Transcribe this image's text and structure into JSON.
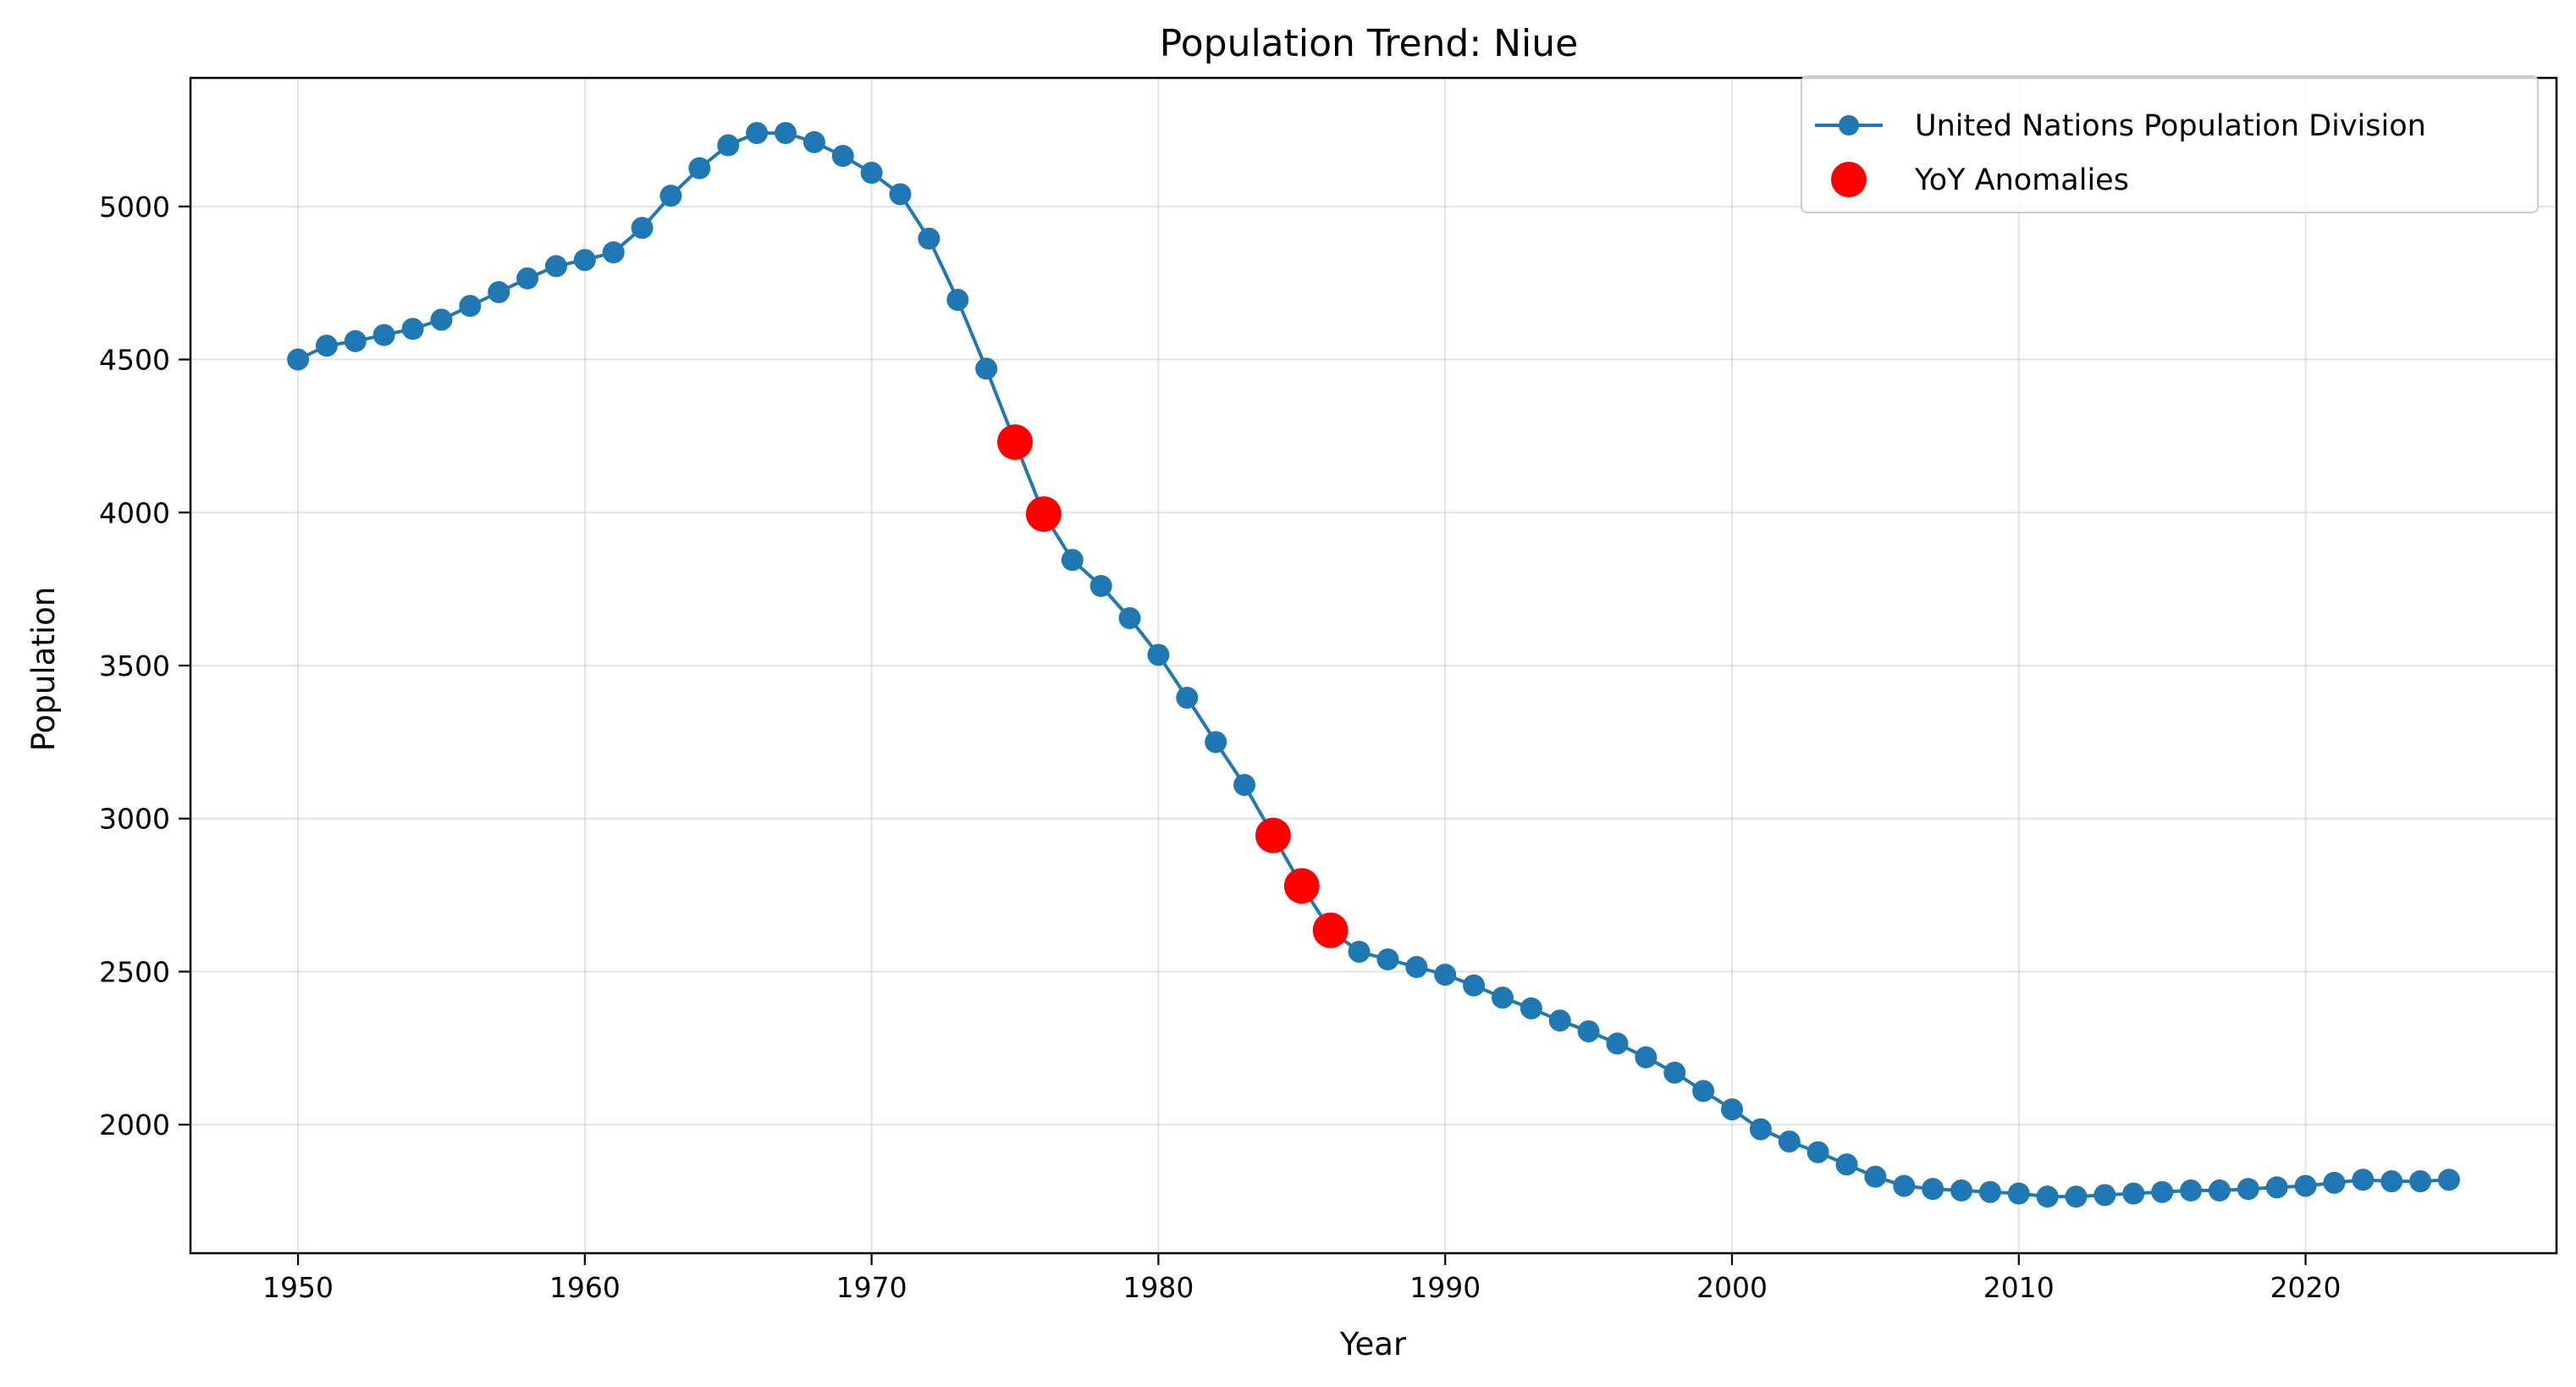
{
  "chart_data": {
    "type": "line",
    "title": "Population Trend: Niue",
    "xlabel": "Year",
    "ylabel": "Population",
    "xlim": [
      1946.25,
      2028.75
    ],
    "ylim": [
      1580,
      5420
    ],
    "x_ticks": [
      1950,
      1960,
      1970,
      1980,
      1990,
      2000,
      2010,
      2020
    ],
    "y_ticks": [
      2000,
      2500,
      3000,
      3500,
      4000,
      4500,
      5000
    ],
    "grid": true,
    "legend_position": "top-right",
    "colors": {
      "line": "#1f77b4",
      "anomaly": "#ff0000"
    },
    "series": [
      {
        "name": "United Nations Population Division",
        "style": "line-with-markers",
        "x": [
          1950,
          1951,
          1952,
          1953,
          1954,
          1955,
          1956,
          1957,
          1958,
          1959,
          1960,
          1961,
          1962,
          1963,
          1964,
          1965,
          1966,
          1967,
          1968,
          1969,
          1970,
          1971,
          1972,
          1973,
          1974,
          1975,
          1976,
          1977,
          1978,
          1979,
          1980,
          1981,
          1982,
          1983,
          1984,
          1985,
          1986,
          1987,
          1988,
          1989,
          1990,
          1991,
          1992,
          1993,
          1994,
          1995,
          1996,
          1997,
          1998,
          1999,
          2000,
          2001,
          2002,
          2003,
          2004,
          2005,
          2006,
          2007,
          2008,
          2009,
          2010,
          2011,
          2012,
          2013,
          2014,
          2015,
          2016,
          2017,
          2018,
          2019,
          2020,
          2021,
          2022,
          2023,
          2024,
          2025
        ],
        "y": [
          4500,
          4545,
          4560,
          4580,
          4600,
          4630,
          4675,
          4720,
          4765,
          4805,
          4825,
          4850,
          4930,
          5035,
          5125,
          5200,
          5240,
          5240,
          5210,
          5165,
          5110,
          5040,
          4895,
          4695,
          4470,
          4230,
          3995,
          3845,
          3760,
          3655,
          3535,
          3395,
          3250,
          3110,
          2945,
          2780,
          2635,
          2565,
          2540,
          2515,
          2490,
          2455,
          2415,
          2380,
          2340,
          2305,
          2265,
          2220,
          2170,
          2110,
          2050,
          1985,
          1945,
          1910,
          1870,
          1830,
          1800,
          1790,
          1785,
          1780,
          1775,
          1765,
          1765,
          1770,
          1775,
          1780,
          1785,
          1785,
          1790,
          1795,
          1800,
          1810,
          1820,
          1815,
          1815,
          1820
        ]
      },
      {
        "name": "YoY Anomalies",
        "style": "scatter",
        "x": [
          1975,
          1976,
          1984,
          1985,
          1986
        ],
        "y": [
          4230,
          3995,
          2945,
          2780,
          2635
        ]
      }
    ]
  }
}
